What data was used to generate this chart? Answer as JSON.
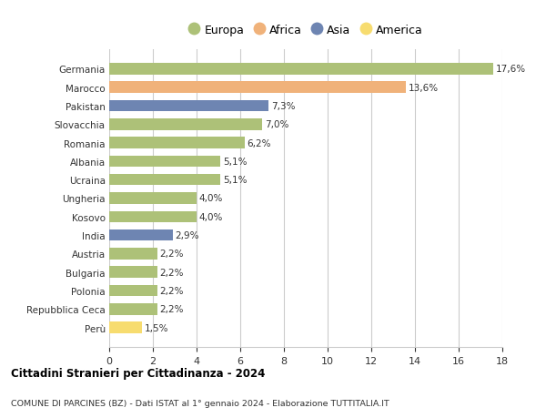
{
  "categories": [
    "Germania",
    "Marocco",
    "Pakistan",
    "Slovacchia",
    "Romania",
    "Albania",
    "Ucraina",
    "Ungheria",
    "Kosovo",
    "India",
    "Austria",
    "Bulgaria",
    "Polonia",
    "Repubblica Ceca",
    "Perù"
  ],
  "values": [
    17.6,
    13.6,
    7.3,
    7.0,
    6.2,
    5.1,
    5.1,
    4.0,
    4.0,
    2.9,
    2.2,
    2.2,
    2.2,
    2.2,
    1.5
  ],
  "labels": [
    "17,6%",
    "13,6%",
    "7,3%",
    "7,0%",
    "6,2%",
    "5,1%",
    "5,1%",
    "4,0%",
    "4,0%",
    "2,9%",
    "2,2%",
    "2,2%",
    "2,2%",
    "2,2%",
    "1,5%"
  ],
  "continents": [
    "Europa",
    "Africa",
    "Asia",
    "Europa",
    "Europa",
    "Europa",
    "Europa",
    "Europa",
    "Europa",
    "Asia",
    "Europa",
    "Europa",
    "Europa",
    "Europa",
    "America"
  ],
  "colors": {
    "Europa": "#adc178",
    "Africa": "#f0b27a",
    "Asia": "#6e85b2",
    "America": "#f7dc6f"
  },
  "legend_order": [
    "Europa",
    "Africa",
    "Asia",
    "America"
  ],
  "xlim": [
    0,
    18
  ],
  "xticks": [
    0,
    2,
    4,
    6,
    8,
    10,
    12,
    14,
    16,
    18
  ],
  "title": "Cittadini Stranieri per Cittadinanza - 2024",
  "subtitle": "COMUNE DI PARCINES (BZ) - Dati ISTAT al 1° gennaio 2024 - Elaborazione TUTTITALIA.IT",
  "background_color": "#ffffff",
  "grid_color": "#cccccc"
}
